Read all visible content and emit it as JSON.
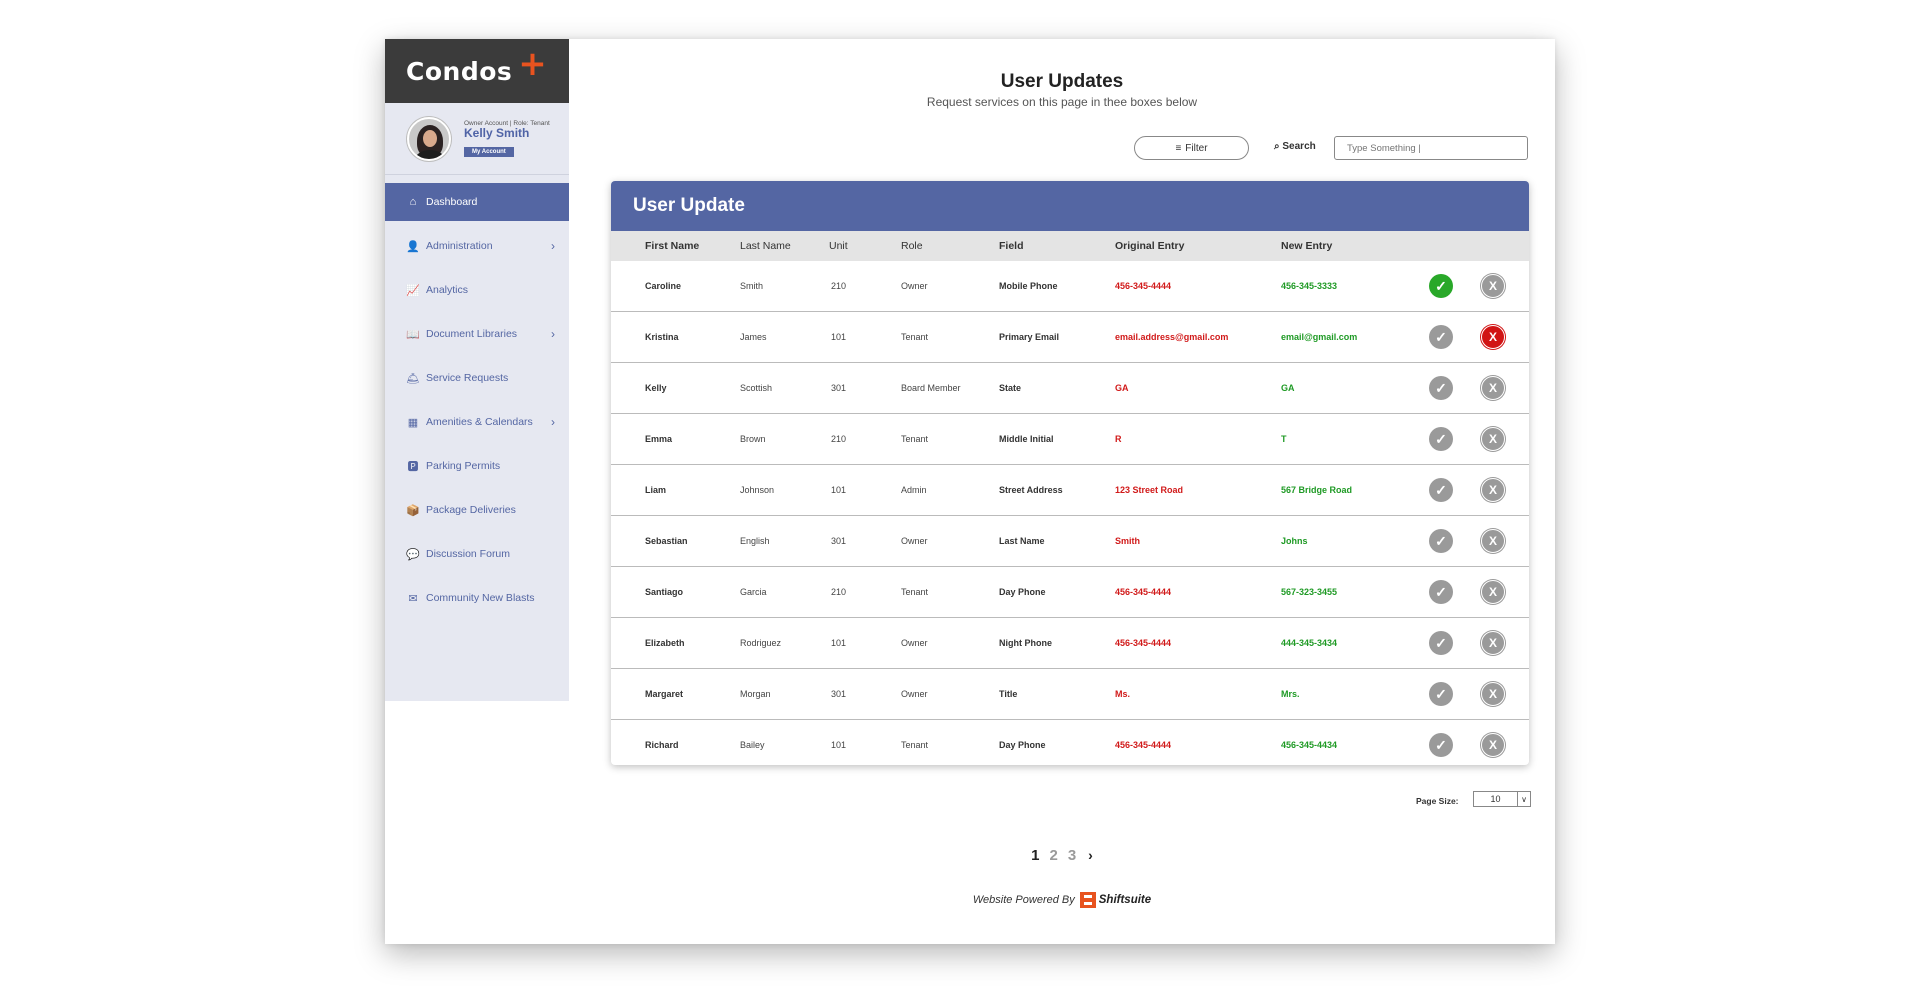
{
  "app": {
    "logo": "Condos",
    "logo_plus": "+"
  },
  "profile": {
    "meta": "Owner Account | Role: Tenant",
    "name": "Kelly Smith",
    "account_button": "My Account"
  },
  "sidebar": {
    "items": [
      {
        "label": "Dashboard",
        "icon": "home-icon",
        "glyph": "⌂",
        "active": true,
        "chevron": false
      },
      {
        "label": "Administration",
        "icon": "user-settings-icon",
        "glyph": "👤",
        "active": false,
        "chevron": true
      },
      {
        "label": "Analytics",
        "icon": "chart-icon",
        "glyph": "📈",
        "active": false,
        "chevron": false
      },
      {
        "label": "Document Libraries",
        "icon": "book-icon",
        "glyph": "📖",
        "active": false,
        "chevron": true
      },
      {
        "label": "Service Requests",
        "icon": "bell-service-icon",
        "glyph": "🛎",
        "active": false,
        "chevron": false
      },
      {
        "label": "Amenities & Calendars",
        "icon": "calendar-icon",
        "glyph": "▦",
        "active": false,
        "chevron": true
      },
      {
        "label": "Parking Permits",
        "icon": "parking-icon",
        "glyph": "🅿",
        "active": false,
        "chevron": false
      },
      {
        "label": "Package Deliveries",
        "icon": "package-icon",
        "glyph": "📦",
        "active": false,
        "chevron": false
      },
      {
        "label": "Discussion Forum",
        "icon": "comments-icon",
        "glyph": "💬",
        "active": false,
        "chevron": false
      },
      {
        "label": "Community New Blasts",
        "icon": "inbox-icon",
        "glyph": "✉",
        "active": false,
        "chevron": false
      }
    ],
    "chevron_glyph": "›"
  },
  "header": {
    "title": "User Updates",
    "subtitle": "Request services on this page in thee boxes below"
  },
  "toolbar": {
    "filter_label": "Filter",
    "filter_icon": "≡",
    "search_icon": "⌕",
    "search_label": "Search",
    "search_placeholder": "Type Something |"
  },
  "table": {
    "title": "User Update",
    "columns": [
      "First Name",
      "Last Name",
      "Unit",
      "Role",
      "Field",
      "Original Entry",
      "New Entry"
    ],
    "rows": [
      {
        "first": "Caroline",
        "last": "Smith",
        "unit": "210",
        "role": "Owner",
        "field": "Mobile Phone",
        "original": "456-345-4444",
        "new": "456-345-3333",
        "status": "approved"
      },
      {
        "first": "Kristina",
        "last": "James",
        "unit": "101",
        "role": "Tenant",
        "field": "Primary Email",
        "original": "email.address@gmail.com",
        "new": "email@gmail.com",
        "status": "rejected"
      },
      {
        "first": "Kelly",
        "last": "Scottish",
        "unit": "301",
        "role": "Board Member",
        "field": "State",
        "original": "GA",
        "new": "GA",
        "status": "pending"
      },
      {
        "first": "Emma",
        "last": "Brown",
        "unit": "210",
        "role": "Tenant",
        "field": "Middle Initial",
        "original": "R",
        "new": "T",
        "status": "pending"
      },
      {
        "first": "Liam",
        "last": "Johnson",
        "unit": "101",
        "role": "Admin",
        "field": "Street Address",
        "original": "123 Street Road",
        "new": "567 Bridge Road",
        "status": "pending"
      },
      {
        "first": "Sebastian",
        "last": "English",
        "unit": "301",
        "role": "Owner",
        "field": "Last Name",
        "original": "Smith",
        "new": "Johns",
        "status": "pending"
      },
      {
        "first": "Santiago",
        "last": "Garcia",
        "unit": "210",
        "role": "Tenant",
        "field": "Day Phone",
        "original": "456-345-4444",
        "new": "567-323-3455",
        "status": "pending"
      },
      {
        "first": "Elizabeth",
        "last": "Rodriguez",
        "unit": "101",
        "role": "Owner",
        "field": "Night Phone",
        "original": "456-345-4444",
        "new": "444-345-3434",
        "status": "pending"
      },
      {
        "first": "Margaret",
        "last": "Morgan",
        "unit": "301",
        "role": "Owner",
        "field": "Title",
        "original": "Ms.",
        "new": "Mrs.",
        "status": "pending"
      },
      {
        "first": "Richard",
        "last": "Bailey",
        "unit": "101",
        "role": "Tenant",
        "field": "Day Phone",
        "original": "456-345-4444",
        "new": "456-345-4434",
        "status": "pending"
      }
    ],
    "approve_glyph": "✓",
    "reject_glyph": "X"
  },
  "pagination": {
    "page_size_label": "Page Size:",
    "page_size": "10",
    "dropdown_glyph": "∨",
    "pages": [
      "1",
      "2",
      "3"
    ],
    "current": "1",
    "next_glyph": "›"
  },
  "footer": {
    "powered_by": "Website Powered By",
    "brand": "Shiftsuite"
  },
  "colors": {
    "primary": "#5466a3",
    "accent": "#e8531f",
    "approve": "#29a829",
    "reject": "#d11414",
    "original_text": "#d11a1a",
    "new_text": "#1f9a25"
  }
}
